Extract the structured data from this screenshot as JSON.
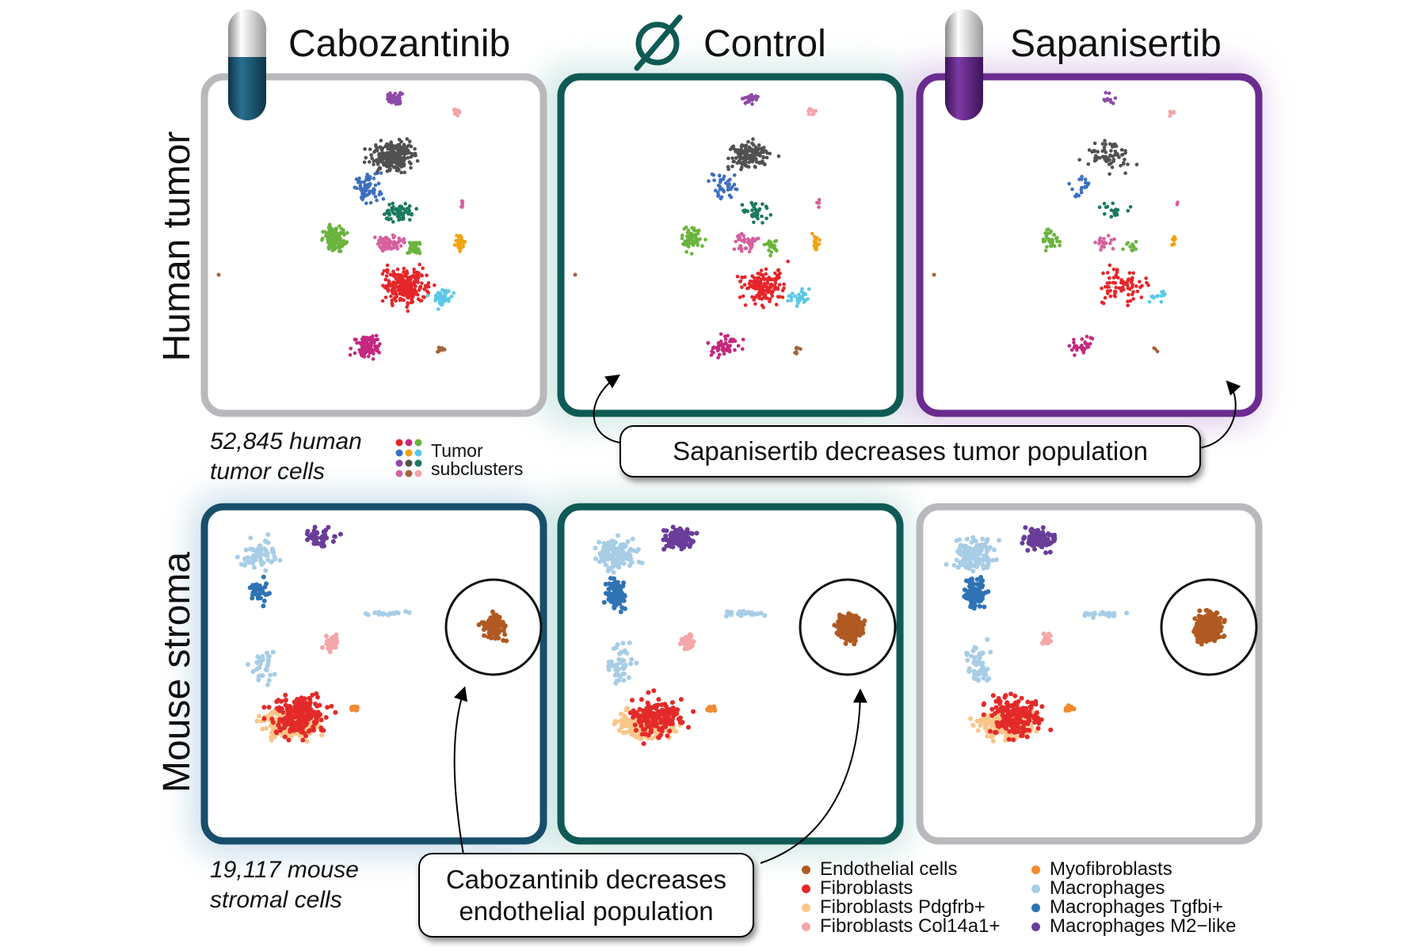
{
  "columns": [
    {
      "title": "Cabozantinib"
    },
    {
      "title": "Control"
    },
    {
      "title": "Sapanisertib"
    }
  ],
  "rows": [
    {
      "title": "Human tumor"
    },
    {
      "title": "Mouse stroma"
    }
  ],
  "tumor": {
    "count_line1": "52,845 human",
    "count_line2": "tumor cells",
    "legend_line1": "Tumor",
    "legend_line2": "subclusters",
    "subcluster_colors": [
      "#e6262a",
      "#c4287f",
      "#6ab43e",
      "#3d6fbf",
      "#f2a20f",
      "#5ac8e8",
      "#8e4aa8",
      "#525052",
      "#1a7a5e",
      "#d4619e",
      "#a4633b",
      "#f4a6aa"
    ]
  },
  "stroma": {
    "count_line1": "19,117 mouse",
    "count_line2": "stromal cells"
  },
  "callouts": {
    "tumor": "Sapanisertib decreases tumor population",
    "endothelial_line1": "Cabozantinib decreases",
    "endothelial_line2": "endothelial population"
  },
  "legend": [
    {
      "label": "Endothelial cells",
      "color": "#b05a22"
    },
    {
      "label": "Fibroblasts",
      "color": "#e32a2a"
    },
    {
      "label": "Fibroblasts Pdgfrb+",
      "color": "#fbc68a"
    },
    {
      "label": "Fibroblasts Col14a1+",
      "color": "#f4a6a8"
    },
    {
      "label": "Myofibroblasts",
      "color": "#f28a30"
    },
    {
      "label": "Macrophages",
      "color": "#a8cde6"
    },
    {
      "label": "Macrophages Tgfbi+",
      "color": "#2f73b5"
    },
    {
      "label": "Macrophages M2−like",
      "color": "#6a3d9a"
    }
  ],
  "colors": {
    "cabozantinib": "#174f6b",
    "control": "#0f5a54",
    "sapanisertib": "#6b2c8f",
    "neutral_frame": "#b9b9bd"
  }
}
